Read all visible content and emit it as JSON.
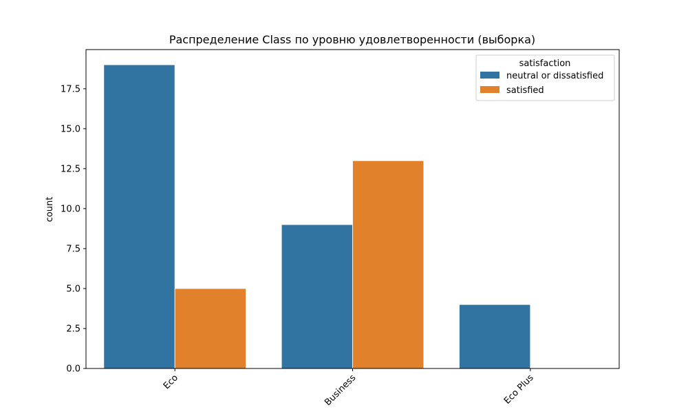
{
  "chart_data": {
    "type": "bar",
    "title": "Распределение Class по уровню удовлетворенности (выборка)",
    "xlabel": "",
    "ylabel": "count",
    "categories": [
      "Eco",
      "Business",
      "Eco Plus"
    ],
    "series": [
      {
        "name": "neutral or dissatisfied",
        "color": "#3274a1",
        "values": [
          19,
          9,
          4
        ]
      },
      {
        "name": "satisfied",
        "color": "#e1812c",
        "values": [
          5,
          13,
          0
        ]
      }
    ],
    "ylim": [
      0,
      19.95
    ],
    "yticks": [
      0.0,
      2.5,
      5.0,
      7.5,
      10.0,
      12.5,
      15.0,
      17.5
    ],
    "ytick_labels": [
      "0.0",
      "2.5",
      "5.0",
      "7.5",
      "10.0",
      "12.5",
      "15.0",
      "17.5"
    ],
    "grid": false,
    "legend": {
      "title": "satisfaction",
      "placement": "top-right"
    }
  }
}
